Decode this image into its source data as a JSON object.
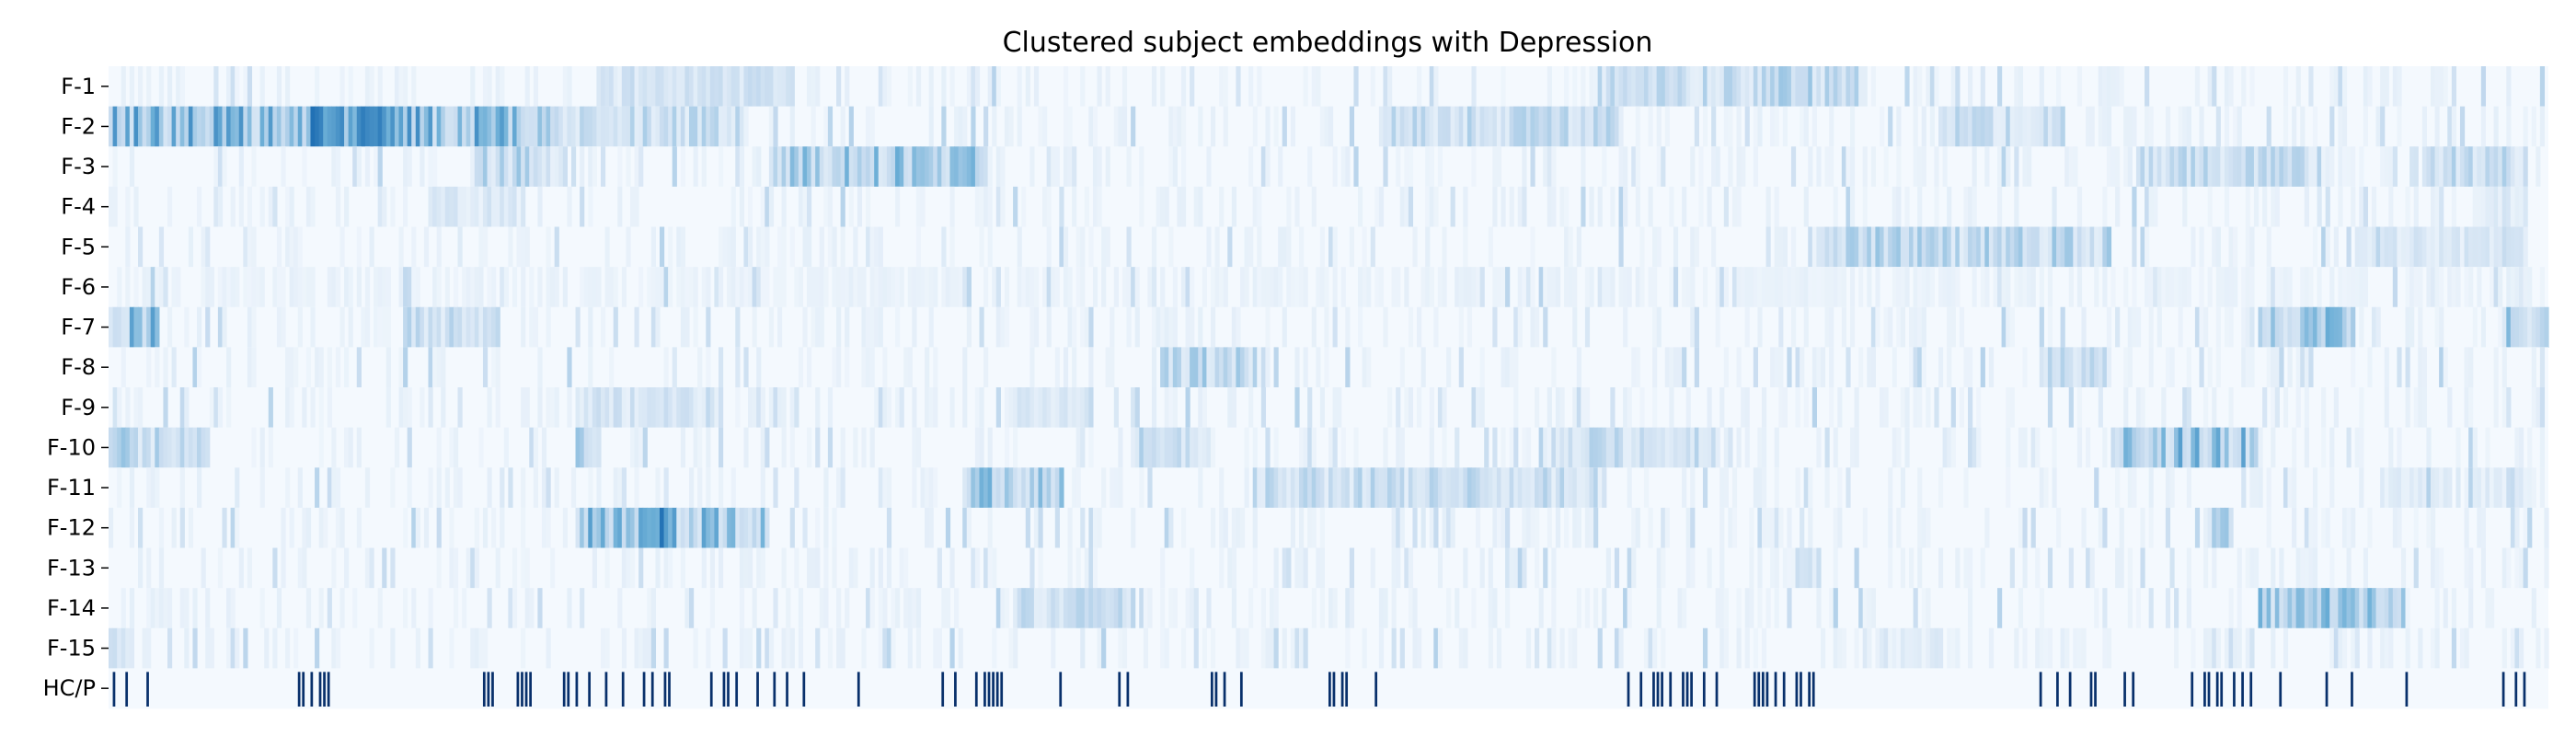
{
  "chart_data": {
    "type": "heatmap",
    "title": "Clustered subject embeddings with Depression",
    "xlabel": "",
    "ylabel": "",
    "rows": [
      "F-1",
      "F-2",
      "F-3",
      "F-4",
      "F-5",
      "F-6",
      "F-7",
      "F-8",
      "F-9",
      "F-10",
      "F-11",
      "F-12",
      "F-13",
      "F-14",
      "F-15",
      "HC/P"
    ],
    "n_columns": 580,
    "value_range": [
      0,
      1
    ],
    "colormap": "Blues",
    "colors": {
      "low": "#f7fbff",
      "high": "#08306b"
    },
    "feature_hotspots": [
      {
        "row": "F-1",
        "bands": [
          [
            0.2,
            0.28,
            0.25
          ],
          [
            0.61,
            0.68,
            0.3
          ],
          [
            0.68,
            0.72,
            0.35
          ]
        ]
      },
      {
        "row": "F-2",
        "bands": [
          [
            0.0,
            0.18,
            0.55
          ],
          [
            0.08,
            0.12,
            0.65
          ],
          [
            0.18,
            0.26,
            0.3
          ],
          [
            0.52,
            0.62,
            0.3
          ],
          [
            0.75,
            0.8,
            0.3
          ]
        ]
      },
      {
        "row": "F-3",
        "bands": [
          [
            0.15,
            0.18,
            0.35
          ],
          [
            0.27,
            0.36,
            0.45
          ],
          [
            0.83,
            0.9,
            0.3
          ],
          [
            0.95,
            0.99,
            0.3
          ]
        ]
      },
      {
        "row": "F-4",
        "bands": [
          [
            0.13,
            0.17,
            0.2
          ],
          [
            0.97,
            0.99,
            0.2
          ]
        ]
      },
      {
        "row": "F-5",
        "bands": [
          [
            0.7,
            0.82,
            0.35
          ],
          [
            0.92,
            0.99,
            0.2
          ]
        ]
      },
      {
        "row": "F-6",
        "bands": [
          [
            0.0,
            1.0,
            0.08
          ]
        ]
      },
      {
        "row": "F-7",
        "bands": [
          [
            0.0,
            0.02,
            0.5
          ],
          [
            0.12,
            0.16,
            0.3
          ],
          [
            0.88,
            0.92,
            0.45
          ],
          [
            0.98,
            1.0,
            0.4
          ]
        ]
      },
      {
        "row": "F-8",
        "bands": [
          [
            0.43,
            0.47,
            0.35
          ],
          [
            0.79,
            0.82,
            0.3
          ]
        ]
      },
      {
        "row": "F-9",
        "bands": [
          [
            0.19,
            0.25,
            0.25
          ],
          [
            0.37,
            0.4,
            0.2
          ]
        ]
      },
      {
        "row": "F-10",
        "bands": [
          [
            0.0,
            0.04,
            0.35
          ],
          [
            0.19,
            0.2,
            0.4
          ],
          [
            0.42,
            0.45,
            0.3
          ],
          [
            0.59,
            0.66,
            0.3
          ],
          [
            0.82,
            0.88,
            0.5
          ]
        ]
      },
      {
        "row": "F-11",
        "bands": [
          [
            0.35,
            0.39,
            0.45
          ],
          [
            0.47,
            0.61,
            0.3
          ],
          [
            0.93,
            0.99,
            0.15
          ]
        ]
      },
      {
        "row": "F-12",
        "bands": [
          [
            0.19,
            0.27,
            0.5
          ],
          [
            0.22,
            0.23,
            0.65
          ],
          [
            0.86,
            0.87,
            0.4
          ]
        ]
      },
      {
        "row": "F-13",
        "bands": [
          [
            0.69,
            0.7,
            0.25
          ]
        ]
      },
      {
        "row": "F-14",
        "bands": [
          [
            0.37,
            0.42,
            0.3
          ],
          [
            0.88,
            0.94,
            0.45
          ]
        ]
      },
      {
        "row": "F-15",
        "bands": [
          [
            0.0,
            0.01,
            0.3
          ],
          [
            0.72,
            0.75,
            0.15
          ]
        ]
      }
    ],
    "hc_p_marker_ranges": [
      [
        0.0,
        0.02
      ],
      [
        0.07,
        0.09
      ],
      [
        0.15,
        0.19
      ],
      [
        0.26,
        0.27
      ],
      [
        0.19,
        0.26
      ],
      [
        0.27,
        0.31
      ],
      [
        0.34,
        0.39
      ],
      [
        0.35,
        0.37
      ],
      [
        0.41,
        0.42
      ],
      [
        0.45,
        0.47
      ],
      [
        0.5,
        0.52
      ],
      [
        0.56,
        0.56
      ],
      [
        0.6,
        0.61
      ],
      [
        0.62,
        0.66
      ],
      [
        0.67,
        0.7
      ],
      [
        0.71,
        0.71
      ],
      [
        0.79,
        0.83
      ],
      [
        0.84,
        0.89
      ],
      [
        0.9,
        0.92
      ],
      [
        0.94,
        0.95
      ],
      [
        0.98,
        1.0
      ]
    ]
  }
}
